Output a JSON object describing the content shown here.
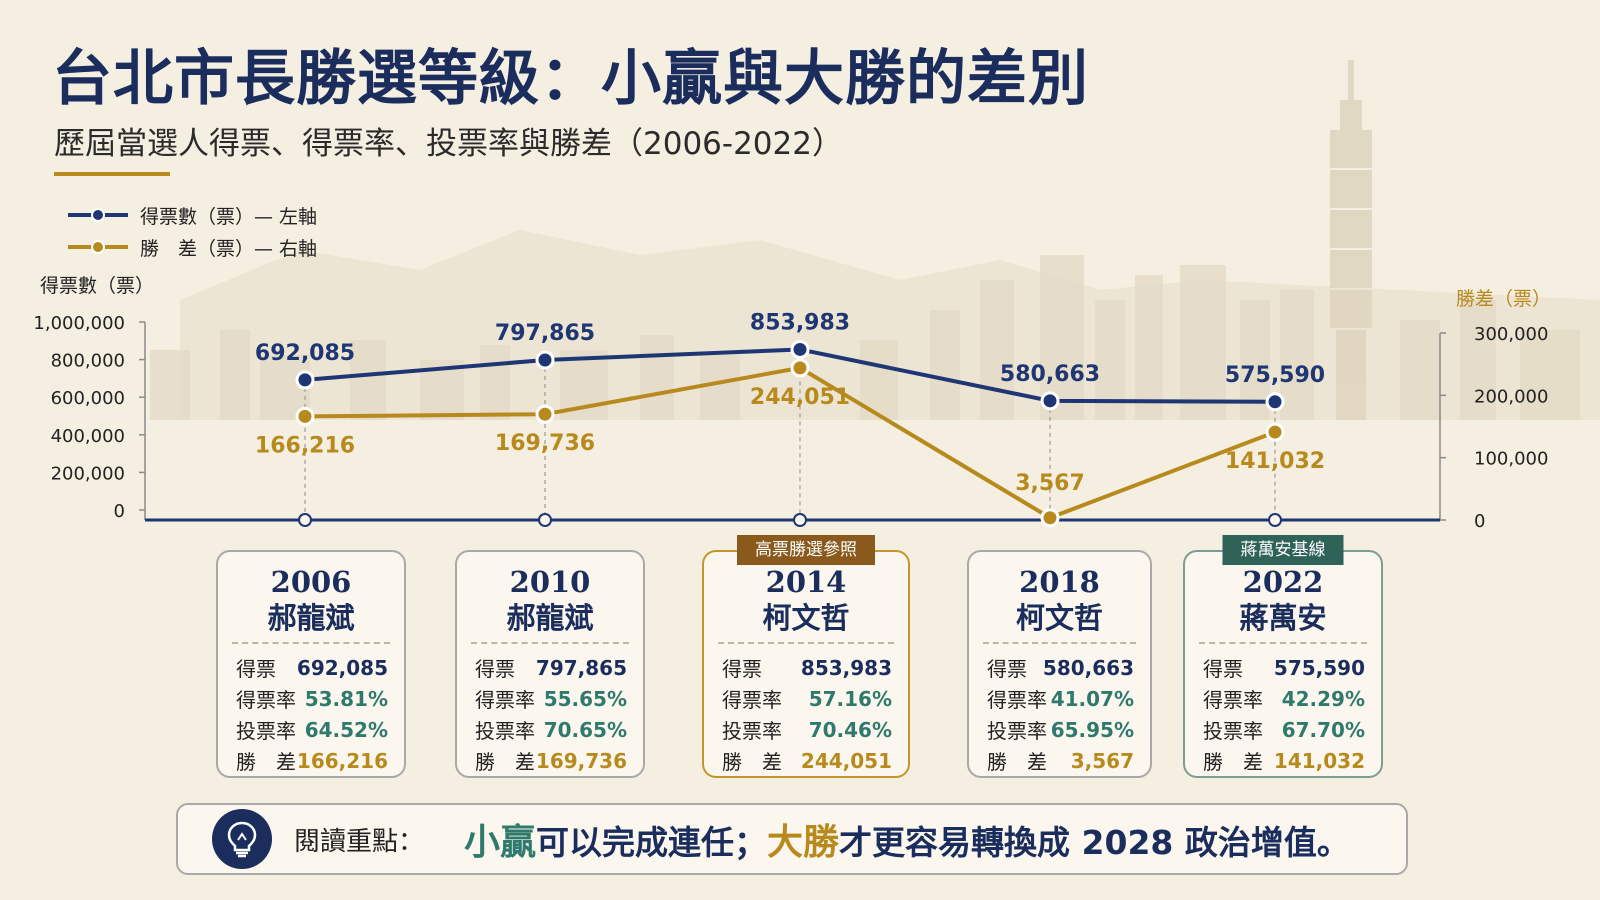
{
  "header": {
    "title": "台北市長勝選等級：小贏與大勝的差別",
    "subtitle": "歷屆當選人得票、得票率、投票率與勝差（2006-2022）"
  },
  "legend": [
    {
      "label": "得票數（票）— 左軸",
      "color": "#1e3673"
    },
    {
      "label": "勝　差（票）— 右軸",
      "color": "#b88a1e"
    }
  ],
  "chart_data": {
    "type": "line",
    "x": [
      "2006",
      "2010",
      "2014",
      "2018",
      "2022"
    ],
    "series": [
      {
        "name": "得票數（票）",
        "axis": "left",
        "color": "#1e3673",
        "values": [
          692085,
          797865,
          853983,
          580663,
          575590
        ],
        "labels": [
          "692,085",
          "797,865",
          "853,983",
          "580,663",
          "575,590"
        ]
      },
      {
        "name": "勝差（票）",
        "axis": "right",
        "color": "#b88a1e",
        "values": [
          166216,
          169736,
          244051,
          3567,
          141032
        ],
        "labels": [
          "166,216",
          "169,736",
          "244,051",
          "3,567",
          "141,032"
        ]
      }
    ],
    "y_left": {
      "label": "得票數（票）",
      "ticks": [
        0,
        200000,
        400000,
        600000,
        800000,
        1000000
      ],
      "tick_labels": [
        "0",
        "200,000",
        "400,000",
        "600,000",
        "800,000",
        "1,000,000"
      ]
    },
    "y_right": {
      "label": "勝差（票）",
      "ticks": [
        0,
        100000,
        200000,
        300000
      ],
      "tick_labels": [
        "0",
        "100,000",
        "200,000",
        "300,000"
      ]
    }
  },
  "cards": [
    {
      "year": "2006",
      "name": "郝龍斌",
      "badge": "",
      "stats": [
        {
          "label": "得票",
          "value": "692,085"
        },
        {
          "label": "得票率",
          "value": "53.81%"
        },
        {
          "label": "投票率",
          "value": "64.52%"
        },
        {
          "label": "勝　差",
          "value": "166,216"
        }
      ]
    },
    {
      "year": "2010",
      "name": "郝龍斌",
      "badge": "",
      "stats": [
        {
          "label": "得票",
          "value": "797,865"
        },
        {
          "label": "得票率",
          "value": "55.65%"
        },
        {
          "label": "投票率",
          "value": "70.65%"
        },
        {
          "label": "勝　差",
          "value": "169,736"
        }
      ]
    },
    {
      "year": "2014",
      "name": "柯文哲",
      "badge": "高票勝選參照",
      "stats": [
        {
          "label": "得票",
          "value": "853,983"
        },
        {
          "label": "得票率",
          "value": "57.16%"
        },
        {
          "label": "投票率",
          "value": "70.46%"
        },
        {
          "label": "勝　差",
          "value": "244,051"
        }
      ]
    },
    {
      "year": "2018",
      "name": "柯文哲",
      "badge": "",
      "stats": [
        {
          "label": "得票",
          "value": "580,663"
        },
        {
          "label": "得票率",
          "value": "41.07%"
        },
        {
          "label": "投票率",
          "value": "65.95%"
        },
        {
          "label": "勝　差",
          "value": "3,567"
        }
      ]
    },
    {
      "year": "2022",
      "name": "蔣萬安",
      "badge": "蔣萬安基線",
      "stats": [
        {
          "label": "得票",
          "value": "575,590"
        },
        {
          "label": "得票率",
          "value": "42.29%"
        },
        {
          "label": "投票率",
          "value": "67.70%"
        },
        {
          "label": "勝　差",
          "value": "141,032"
        }
      ]
    }
  ],
  "keypoint": {
    "label": "閱讀重點：",
    "small_win": "小贏",
    "mid_text": "可以完成連任；",
    "big_win": "大勝",
    "end_text": "才更容易轉換成 2028 政治增值。",
    "icon": "lightbulb-icon"
  }
}
